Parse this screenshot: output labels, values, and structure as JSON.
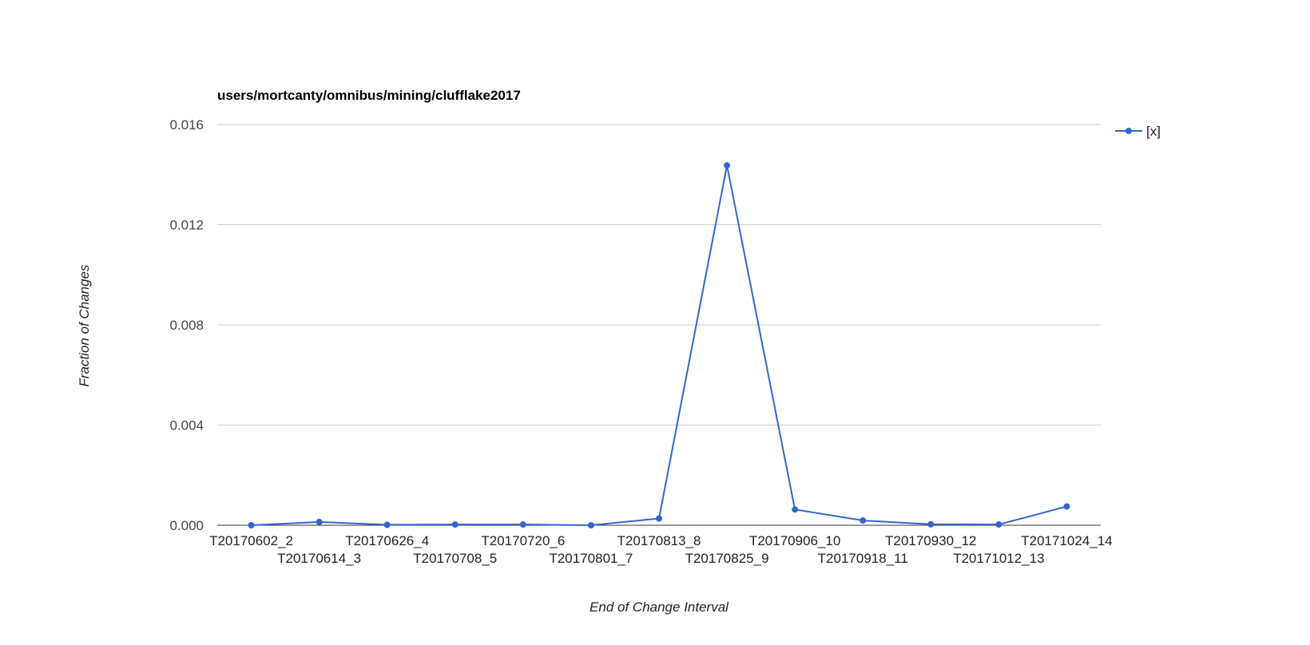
{
  "chart_data": {
    "type": "line",
    "title": "users/mortcanty/omnibus/mining/clufflake2017",
    "xlabel": "End of Change Interval",
    "ylabel": "Fraction of Changes",
    "categories": [
      "T20170602_2",
      "T20170614_3",
      "T20170626_4",
      "T20170708_5",
      "T20170720_6",
      "T20170801_7",
      "T20170813_8",
      "T20170825_9",
      "T20170906_10",
      "T20170918_11",
      "T20170930_12",
      "T20171012_13",
      "T20171024_14"
    ],
    "series": [
      {
        "name": "[x]",
        "color": "#3366cc",
        "values": [
          0.0,
          0.00013,
          2e-05,
          3e-05,
          3e-05,
          0.0,
          0.00027,
          0.01437,
          0.00063,
          0.00019,
          4e-05,
          3e-05,
          0.00075
        ]
      }
    ],
    "ylim": [
      0,
      0.016
    ],
    "yticks": [
      "0.000",
      "0.004",
      "0.008",
      "0.012",
      "0.016"
    ],
    "grid": true,
    "legend_position": "right"
  },
  "colors": {
    "series": "#3366cc",
    "gridline": "#cccccc",
    "baseline": "#333333"
  }
}
